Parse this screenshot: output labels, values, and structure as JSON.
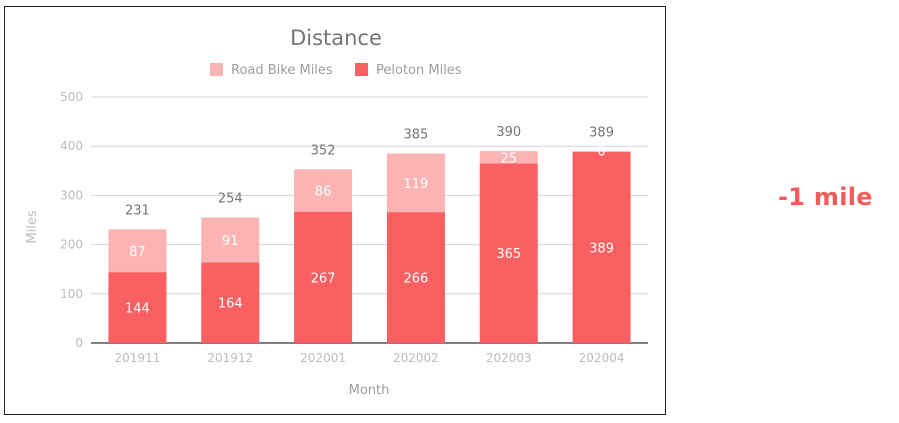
{
  "chart_data": {
    "type": "bar",
    "stacked": true,
    "title": "Distance",
    "xlabel": "Month",
    "ylabel": "Miles",
    "categories": [
      "201911",
      "201912",
      "202001",
      "202002",
      "202003",
      "202004"
    ],
    "series": [
      {
        "name": "Peloton Miles",
        "values": [
          144,
          164,
          267,
          266,
          365,
          389
        ],
        "color": "#fa5f62"
      },
      {
        "name": "Road Bike Miles",
        "values": [
          87,
          91,
          86,
          119,
          25,
          0
        ],
        "color": "#fbb3b4"
      }
    ],
    "totals": [
      231,
      254,
      352,
      385,
      390,
      389
    ],
    "ylim": [
      0,
      500
    ],
    "yticks": [
      0,
      100,
      200,
      300,
      400,
      500
    ],
    "grid": true,
    "legend_position": "top",
    "legend_order": [
      "Road Bike Miles",
      "Peloton Miles"
    ]
  },
  "callout": {
    "text": "-1 mile",
    "color": "#f45b5b"
  }
}
